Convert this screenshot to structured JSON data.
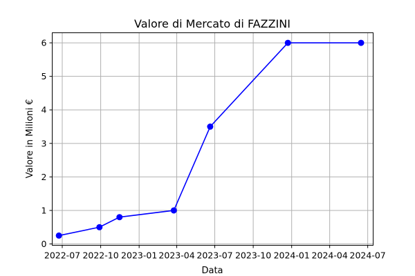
{
  "chart_data": {
    "type": "line",
    "title": "Valore di Mercato di FAZZINI",
    "xlabel": "Data",
    "ylabel": "Valore in Milioni €",
    "x_ticks": [
      {
        "date": "2022-07-01",
        "label": "2022-07"
      },
      {
        "date": "2022-10-01",
        "label": "2022-10"
      },
      {
        "date": "2023-01-01",
        "label": "2023-01"
      },
      {
        "date": "2023-04-01",
        "label": "2023-04"
      },
      {
        "date": "2023-07-01",
        "label": "2023-07"
      },
      {
        "date": "2023-10-01",
        "label": "2023-10"
      },
      {
        "date": "2024-01-01",
        "label": "2024-01"
      },
      {
        "date": "2024-04-01",
        "label": "2024-04"
      },
      {
        "date": "2024-07-01",
        "label": "2024-07"
      }
    ],
    "y_ticks": [
      0,
      1,
      2,
      3,
      4,
      5,
      6
    ],
    "ylim": [
      -0.04,
      6.3
    ],
    "xlim": [
      "2022-06-07",
      "2024-07-14"
    ],
    "grid": true,
    "series": [
      {
        "color": "#0000ff",
        "marker": "circle",
        "points": [
          {
            "x": "2022-06-23",
            "y": 0.25
          },
          {
            "x": "2022-09-28",
            "y": 0.5
          },
          {
            "x": "2022-11-15",
            "y": 0.8
          },
          {
            "x": "2023-03-25",
            "y": 1.0
          },
          {
            "x": "2023-06-20",
            "y": 3.5
          },
          {
            "x": "2023-12-23",
            "y": 6.0
          },
          {
            "x": "2024-06-15",
            "y": 6.0
          }
        ]
      }
    ]
  }
}
